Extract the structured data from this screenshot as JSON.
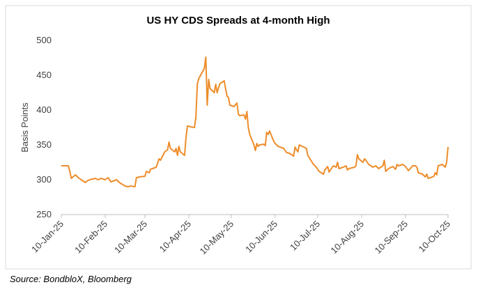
{
  "chart_data": {
    "type": "line",
    "title": "US HY CDS Spreads at 4-month High",
    "y_label": "Basis Points",
    "source": "Source: BondbloX, Bloomberg",
    "color": "#ee8c2a",
    "xlim": [
      "2025-01-10",
      "2025-10-10"
    ],
    "xticks": [
      {
        "value": "2025-01-10",
        "label": "10-Jan-25"
      },
      {
        "value": "2025-02-10",
        "label": "10-Feb-25"
      },
      {
        "value": "2025-03-10",
        "label": "10-Mar-25"
      },
      {
        "value": "2025-04-10",
        "label": "10-Apr-25"
      },
      {
        "value": "2025-05-10",
        "label": "10-May-25"
      },
      {
        "value": "2025-06-10",
        "label": "10-Jun-25"
      },
      {
        "value": "2025-07-10",
        "label": "10-Jul-25"
      },
      {
        "value": "2025-08-10",
        "label": "10-Aug-25"
      },
      {
        "value": "2025-09-10",
        "label": "10-Sep-25"
      },
      {
        "value": "2025-10-10",
        "label": "10-Oct-25"
      }
    ],
    "ylim": [
      250,
      500
    ],
    "yticks": [
      250,
      300,
      350,
      400,
      450,
      500
    ],
    "x": [
      "2025-01-10",
      "2025-01-13",
      "2025-01-15",
      "2025-01-16",
      "2025-01-17",
      "2025-01-20",
      "2025-01-22",
      "2025-01-24",
      "2025-01-27",
      "2025-01-28",
      "2025-01-30",
      "2025-02-03",
      "2025-02-05",
      "2025-02-07",
      "2025-02-10",
      "2025-02-12",
      "2025-02-14",
      "2025-02-18",
      "2025-02-20",
      "2025-02-24",
      "2025-02-26",
      "2025-02-28",
      "2025-03-03",
      "2025-03-04",
      "2025-03-06",
      "2025-03-10",
      "2025-03-11",
      "2025-03-13",
      "2025-03-14",
      "2025-03-18",
      "2025-03-20",
      "2025-03-21",
      "2025-03-24",
      "2025-03-26",
      "2025-03-27",
      "2025-03-28",
      "2025-03-31",
      "2025-04-01",
      "2025-04-02",
      "2025-04-03",
      "2025-04-04",
      "2025-04-07",
      "2025-04-08",
      "2025-04-09",
      "2025-04-10",
      "2025-04-11",
      "2025-04-14",
      "2025-04-15",
      "2025-04-16",
      "2025-04-17",
      "2025-04-21",
      "2025-04-22",
      "2025-04-23",
      "2025-04-24",
      "2025-04-25",
      "2025-04-28",
      "2025-04-29",
      "2025-04-30",
      "2025-05-01",
      "2025-05-02",
      "2025-05-05",
      "2025-05-06",
      "2025-05-07",
      "2025-05-08",
      "2025-05-09",
      "2025-05-12",
      "2025-05-13",
      "2025-05-14",
      "2025-05-15",
      "2025-05-16",
      "2025-05-19",
      "2025-05-20",
      "2025-05-21",
      "2025-05-22",
      "2025-05-23",
      "2025-05-26",
      "2025-05-27",
      "2025-05-28",
      "2025-05-29",
      "2025-05-30",
      "2025-06-02",
      "2025-06-03",
      "2025-06-04",
      "2025-06-05",
      "2025-06-06",
      "2025-06-09",
      "2025-06-10",
      "2025-06-12",
      "2025-06-16",
      "2025-06-18",
      "2025-06-20",
      "2025-06-23",
      "2025-06-24",
      "2025-06-25",
      "2025-06-26",
      "2025-06-27",
      "2025-06-30",
      "2025-07-02",
      "2025-07-03",
      "2025-07-07",
      "2025-07-09",
      "2025-07-11",
      "2025-07-14",
      "2025-07-15",
      "2025-07-17",
      "2025-07-18",
      "2025-07-21",
      "2025-07-23",
      "2025-07-24",
      "2025-07-25",
      "2025-07-28",
      "2025-07-30",
      "2025-07-31",
      "2025-08-01",
      "2025-08-05",
      "2025-08-06",
      "2025-08-07",
      "2025-08-08",
      "2025-08-11",
      "2025-08-12",
      "2025-08-13",
      "2025-08-15",
      "2025-08-18",
      "2025-08-20",
      "2025-08-22",
      "2025-08-25",
      "2025-08-26",
      "2025-08-27",
      "2025-08-29",
      "2025-09-01",
      "2025-09-03",
      "2025-09-04",
      "2025-09-05",
      "2025-09-08",
      "2025-09-10",
      "2025-09-12",
      "2025-09-15",
      "2025-09-17",
      "2025-09-18",
      "2025-09-19",
      "2025-09-22",
      "2025-09-24",
      "2025-09-25",
      "2025-09-26",
      "2025-09-29",
      "2025-09-30",
      "2025-10-01",
      "2025-10-02",
      "2025-10-03",
      "2025-10-06",
      "2025-10-07",
      "2025-10-08",
      "2025-10-09",
      "2025-10-10"
    ],
    "values": [
      320,
      320,
      320,
      312,
      302,
      307,
      303,
      300,
      296,
      298,
      300,
      302,
      300,
      302,
      300,
      303,
      297,
      300,
      296,
      291,
      290,
      291,
      290,
      303,
      304,
      305,
      312,
      310,
      315,
      318,
      330,
      328,
      340,
      343,
      354,
      345,
      340,
      345,
      335,
      348,
      340,
      335,
      360,
      377,
      377,
      376,
      375,
      390,
      437,
      445,
      460,
      476,
      407,
      444,
      431,
      425,
      437,
      425,
      432,
      438,
      442,
      430,
      420,
      418,
      407,
      405,
      408,
      410,
      394,
      392,
      393,
      387,
      398,
      375,
      365,
      350,
      342,
      352,
      348,
      350,
      351,
      349,
      368,
      365,
      370,
      355,
      352,
      348,
      345,
      339,
      338,
      334,
      347,
      343,
      340,
      350,
      347,
      345,
      335,
      322,
      318,
      312,
      308,
      314,
      319,
      311,
      320,
      318,
      325,
      316,
      318,
      320,
      314,
      316,
      318,
      320,
      336,
      330,
      325,
      330,
      328,
      322,
      318,
      320,
      316,
      320,
      328,
      312,
      316,
      319,
      315,
      322,
      320,
      322,
      319,
      313,
      320,
      320,
      318,
      310,
      308,
      304,
      308,
      302,
      304,
      305,
      310,
      307,
      320,
      322,
      320,
      318,
      325,
      347
    ]
  }
}
